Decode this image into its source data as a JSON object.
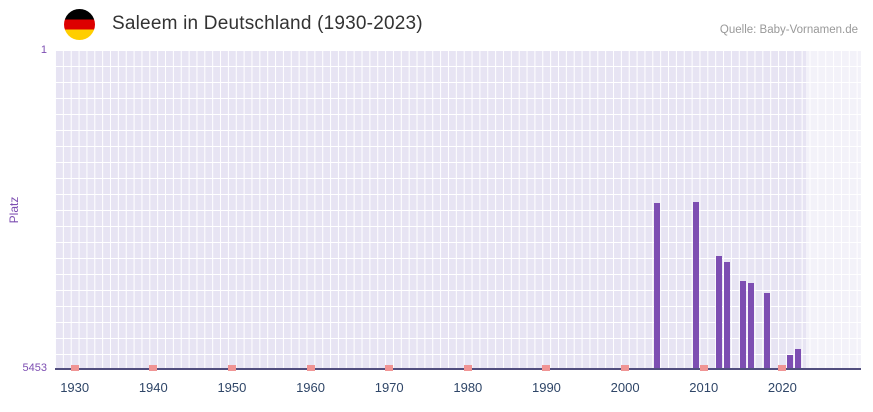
{
  "header": {
    "title": "Saleem in Deutschland (1930-2023)",
    "source": "Quelle: Baby-Vornamen.de"
  },
  "chart_data": {
    "type": "bar",
    "title": "Saleem in Deutschland (1930-2023)",
    "source": "Quelle: Baby-Vornamen.de",
    "ylabel": "Platz",
    "xlabel": "",
    "grid": true,
    "legend": null,
    "y_axis": {
      "min": 1,
      "max": 5453,
      "inverted": true,
      "top_tick_label": "1",
      "bottom_tick_label": "5453"
    },
    "x_axis": {
      "min": 1927.5,
      "max": 2030,
      "tick_years": [
        1930,
        1940,
        1950,
        1960,
        1970,
        1980,
        1990,
        2000,
        2010,
        2020
      ]
    },
    "bars": [
      {
        "year": 2004,
        "rank": 2640
      },
      {
        "year": 2009,
        "rank": 2630
      },
      {
        "year": 2012,
        "rank": 3540
      },
      {
        "year": 2013,
        "rank": 3650
      },
      {
        "year": 2015,
        "rank": 3970
      },
      {
        "year": 2016,
        "rank": 4000
      },
      {
        "year": 2018,
        "rank": 4180
      },
      {
        "year": 2021,
        "rank": 5230
      },
      {
        "year": 2022,
        "rank": 5130
      }
    ],
    "x_axis_marker_years": [
      1930,
      1940,
      1950,
      1960,
      1970,
      1980,
      1990,
      2000,
      2010,
      2020
    ],
    "highlight_region": {
      "from_year": 2023,
      "to_year": 2030
    },
    "colors": {
      "bar": "#7d4eb2",
      "plot_bg": "#e7e4f3",
      "grid_line": "#ffffff",
      "axis_line": "#514e7e",
      "marker": "#f09494",
      "y_tick_label": "#7d4eb2",
      "ylabel": "#7d4eb2",
      "year_label": "#2f4668",
      "title": "#333333",
      "source": "#999999",
      "highlight": "rgba(255,255,255,0.5)",
      "flag_black": "#000000",
      "flag_red": "#dd0000",
      "flag_gold": "#ffce00"
    }
  }
}
